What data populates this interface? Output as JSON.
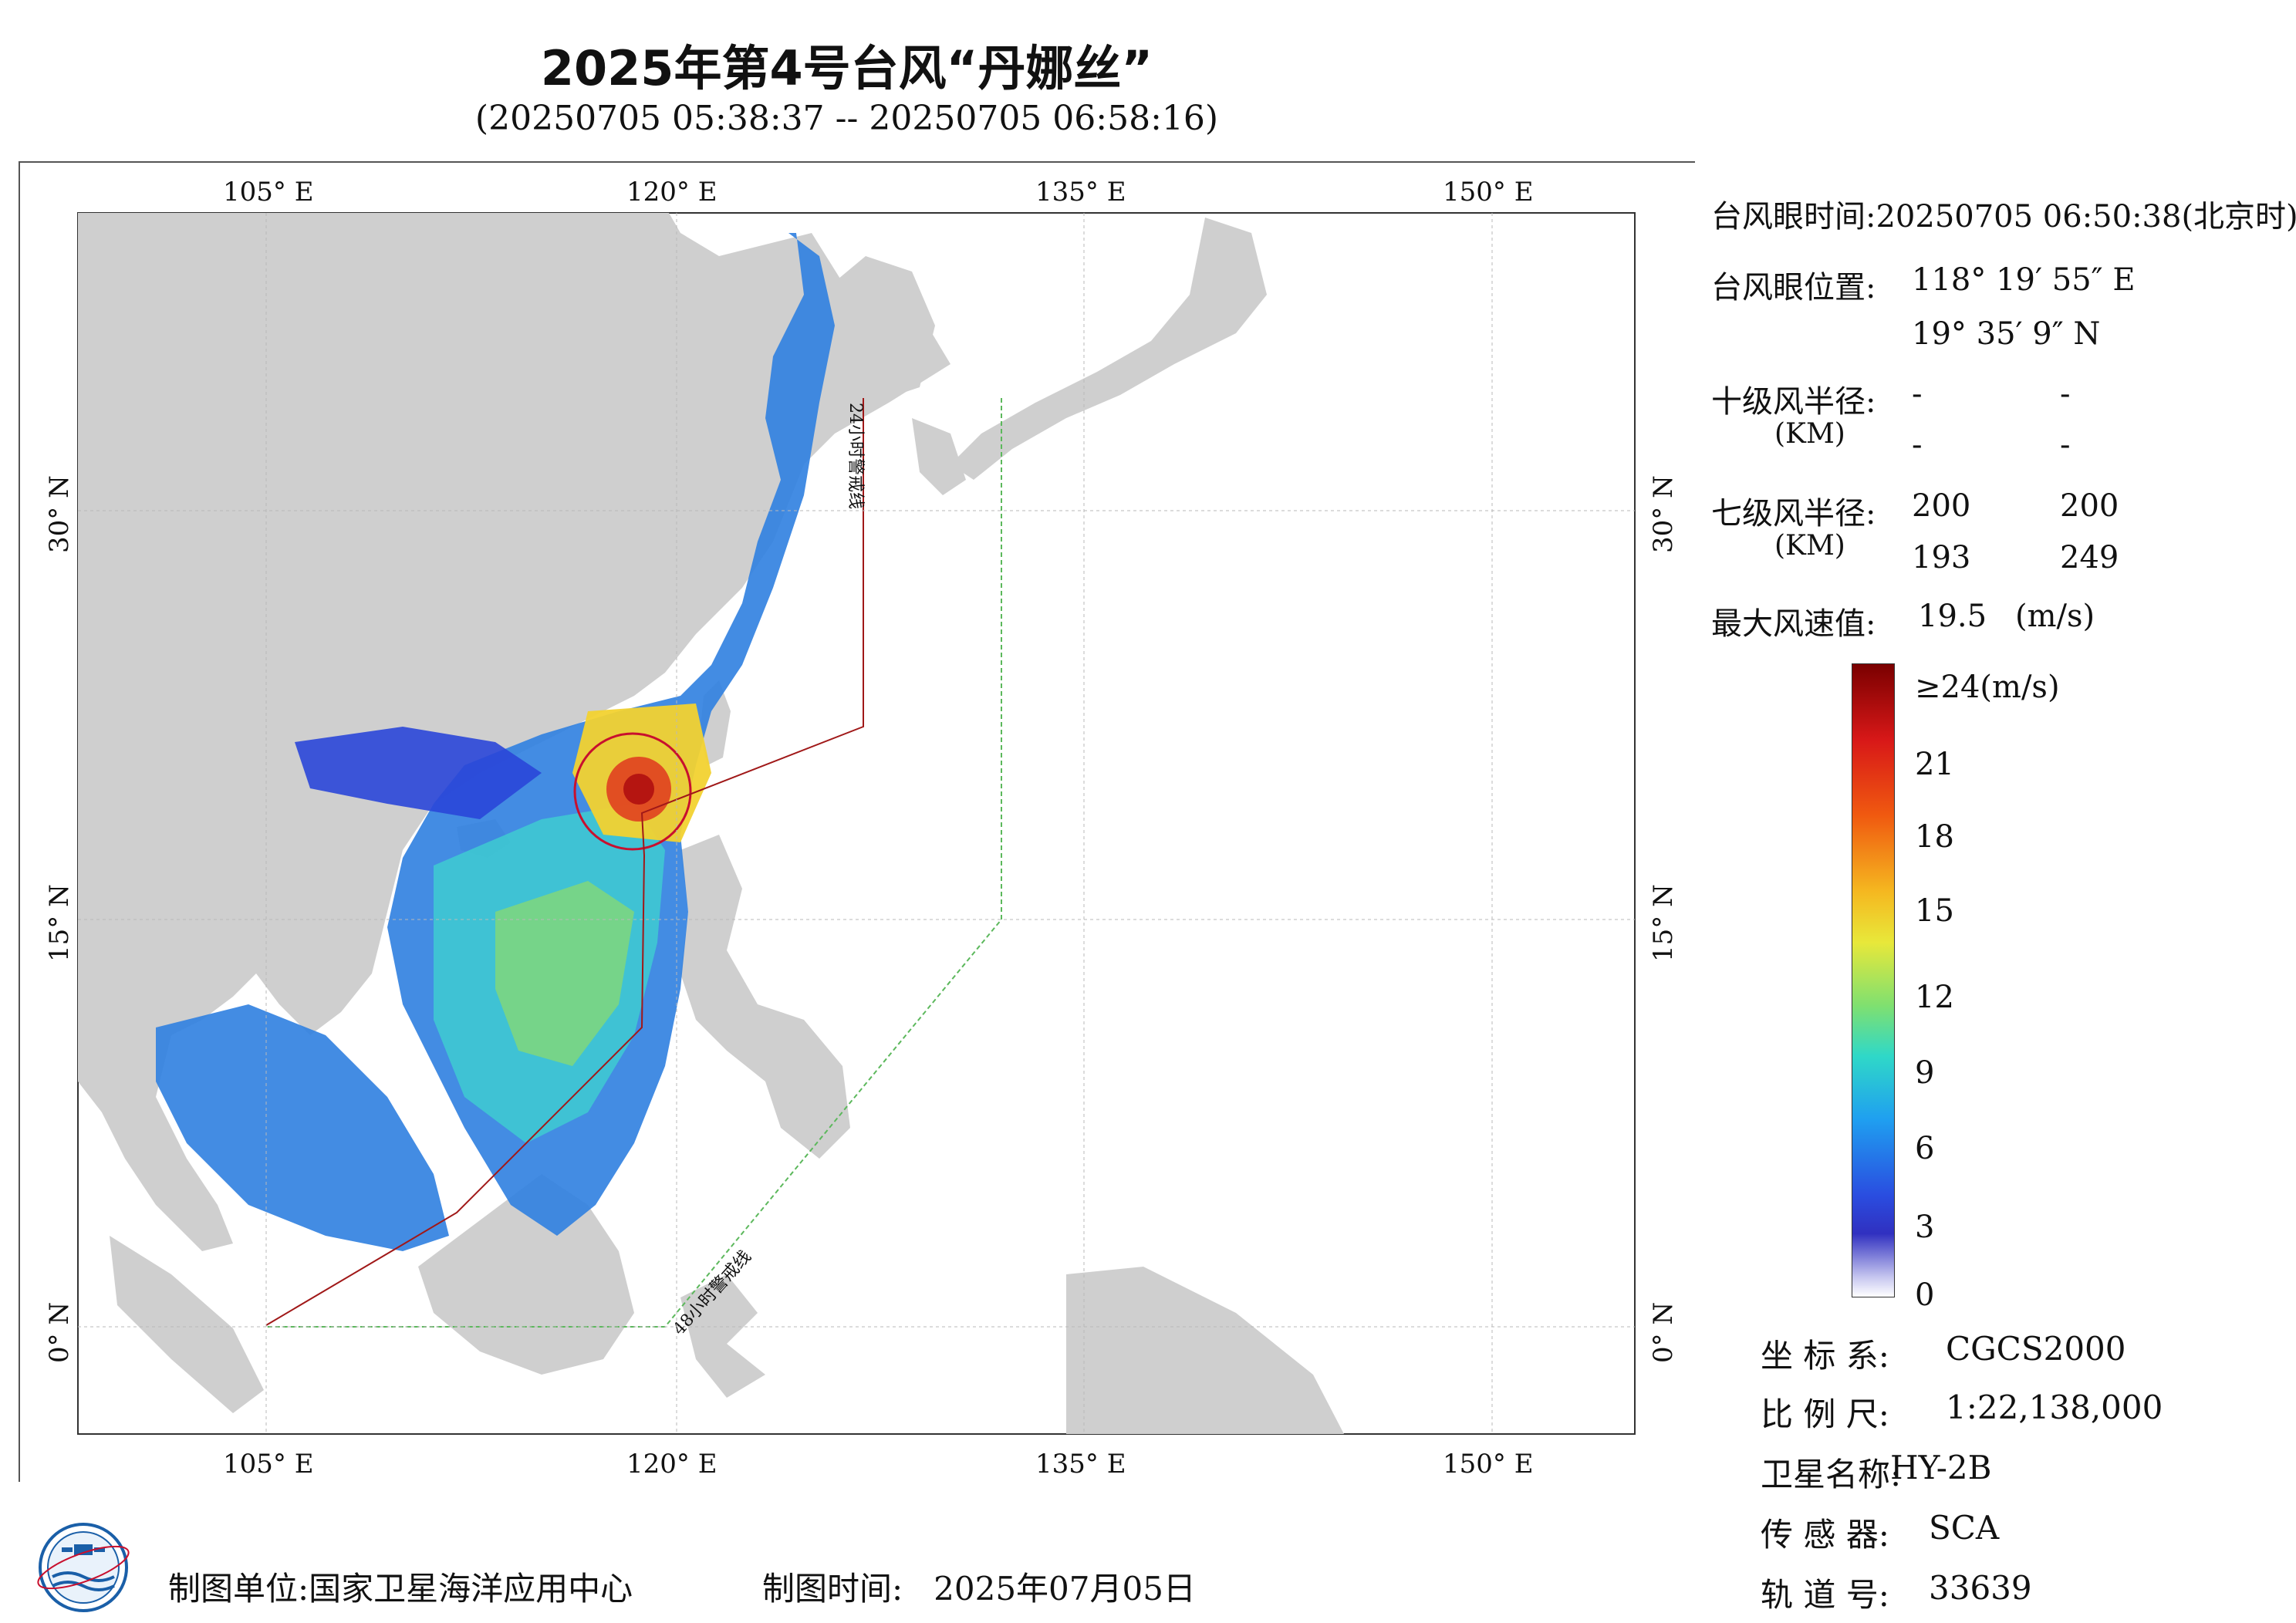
{
  "title": "2025年第4号台风“丹娜丝”",
  "subtitle": "(20250705 05:38:37 -- 20250705 06:58:16)",
  "map": {
    "lon_ticks": [
      "105° E",
      "120° E",
      "135° E",
      "150° E"
    ],
    "lat_ticks": [
      "30° N",
      "15° N",
      "0° N"
    ],
    "warning_line_24h": "24小时警戒线",
    "warning_line_48h": "48小时警戒线",
    "colors": {
      "land": "#cfcfcf",
      "ocean": "#ffffff",
      "line_24h": "#a01818",
      "line_48h": "#5cb85c",
      "eye_circle": "#c8102e"
    }
  },
  "info": {
    "eye_time_label": "台风眼时间:",
    "eye_time_value": "20250705 06:50:38(北京时)",
    "eye_pos_label": "台风眼位置:",
    "eye_lon": "118° 19′ 55″ E",
    "eye_lat": "19° 35′ 9″ N",
    "r10_label": "十级风半径:",
    "r10_unit": "(KM)",
    "r10_values": [
      "-",
      "-",
      "-",
      "-"
    ],
    "r7_label": "七级风半径:",
    "r7_unit": "(KM)",
    "r7_values": [
      "200",
      "200",
      "193",
      "249"
    ],
    "max_wind_label": "最大风速值:",
    "max_wind_value": "19.5",
    "max_wind_unit": "(m/s)"
  },
  "colorbar": {
    "top_label": "≥24(m/s)",
    "tick_labels": [
      "21",
      "18",
      "15",
      "12",
      "9",
      "6",
      "3",
      "0"
    ],
    "min": 0,
    "max": 24
  },
  "meta": {
    "crs_label": "坐 标 系:",
    "crs_value": "CGCS2000",
    "scale_label": "比 例 尺:",
    "scale_value": "1:22,138,000",
    "satellite_label": "卫星名称:",
    "satellite_value": "HY-2B",
    "sensor_label": "传 感 器:",
    "sensor_value": "SCA",
    "orbit_label": "轨 道 号:",
    "orbit_value": "33639"
  },
  "footer": {
    "unit_label": "制图单位:",
    "unit_value": "国家卫星海洋应用中心",
    "time_label": "制图时间:",
    "time_value": "2025年07月05日"
  }
}
